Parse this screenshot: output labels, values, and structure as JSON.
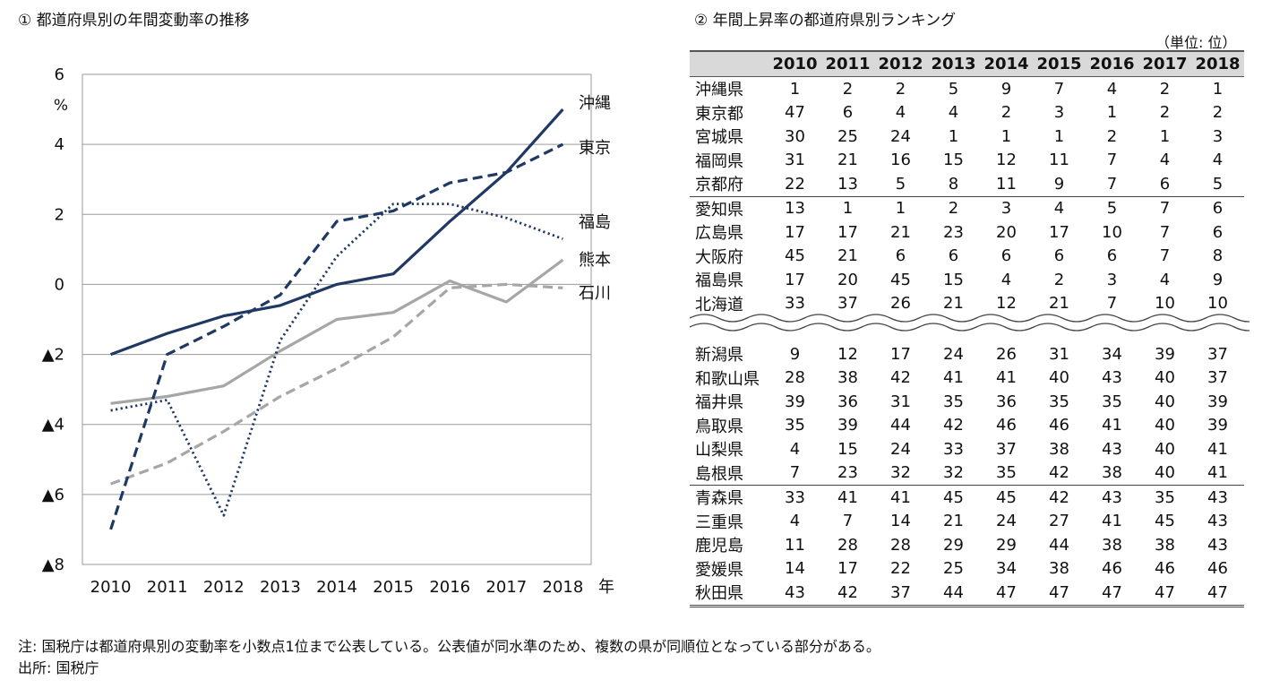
{
  "left_title": "① 都道府県別の年間変動率の推移",
  "right_title": "② 年間上昇率の都道府県別ランキング",
  "chart_data": {
    "type": "line",
    "title": "① 都道府県別の年間変動率の推移",
    "ylabel": "%",
    "xlabel": "年",
    "x": [
      "2010",
      "2011",
      "2012",
      "2013",
      "2014",
      "2015",
      "2016",
      "2017",
      "2018"
    ],
    "ylim": [
      -8,
      6
    ],
    "yticks": [
      6,
      4,
      2,
      0,
      -2,
      -4,
      -6,
      -8
    ],
    "ytick_labels": [
      "6",
      "4",
      "2",
      "0",
      "▲2",
      "▲4",
      "▲6",
      "▲8"
    ],
    "grid": true,
    "series": [
      {
        "name": "沖縄",
        "color": "#1f3864",
        "dash": "solid",
        "values": [
          -2.0,
          -1.4,
          -0.9,
          -0.6,
          0.0,
          0.3,
          1.8,
          3.2,
          5.0
        ]
      },
      {
        "name": "東京",
        "color": "#1f3864",
        "dash": "dashed",
        "values": [
          -7.0,
          -2.0,
          -1.2,
          -0.3,
          1.8,
          2.1,
          2.9,
          3.2,
          4.0
        ]
      },
      {
        "name": "福島",
        "color": "#1f3864",
        "dash": "dotted",
        "values": [
          -3.6,
          -3.3,
          -6.6,
          -1.6,
          0.8,
          2.3,
          2.3,
          1.9,
          1.3
        ]
      },
      {
        "name": "熊本",
        "color": "#a6a6a6",
        "dash": "solid",
        "values": [
          -3.4,
          -3.2,
          -2.9,
          -1.9,
          -1.0,
          -0.8,
          0.1,
          -0.5,
          0.7
        ]
      },
      {
        "name": "石川",
        "color": "#a6a6a6",
        "dash": "dashed",
        "values": [
          -5.7,
          -5.1,
          -4.2,
          -3.2,
          -2.4,
          -1.5,
          -0.1,
          0.0,
          -0.1
        ]
      }
    ]
  },
  "ranking": {
    "unit": "（単位: 位）",
    "years": [
      "2010",
      "2011",
      "2012",
      "2013",
      "2014",
      "2015",
      "2016",
      "2017",
      "2018"
    ],
    "top": [
      {
        "pref": "沖縄県",
        "ranks": [
          "1",
          "2",
          "2",
          "5",
          "9",
          "7",
          "4",
          "2",
          "1"
        ]
      },
      {
        "pref": "東京都",
        "ranks": [
          "47",
          "6",
          "4",
          "4",
          "2",
          "3",
          "1",
          "2",
          "2"
        ]
      },
      {
        "pref": "宮城県",
        "ranks": [
          "30",
          "25",
          "24",
          "1",
          "1",
          "1",
          "2",
          "1",
          "3"
        ]
      },
      {
        "pref": "福岡県",
        "ranks": [
          "31",
          "21",
          "16",
          "15",
          "12",
          "11",
          "7",
          "4",
          "4"
        ]
      },
      {
        "pref": "京都府",
        "ranks": [
          "22",
          "13",
          "5",
          "8",
          "11",
          "9",
          "7",
          "6",
          "5"
        ]
      },
      {
        "pref": "愛知県",
        "ranks": [
          "13",
          "1",
          "1",
          "2",
          "3",
          "4",
          "5",
          "7",
          "6"
        ]
      },
      {
        "pref": "広島県",
        "ranks": [
          "17",
          "17",
          "21",
          "23",
          "20",
          "17",
          "10",
          "7",
          "6"
        ]
      },
      {
        "pref": "大阪府",
        "ranks": [
          "45",
          "21",
          "6",
          "6",
          "6",
          "6",
          "6",
          "7",
          "8"
        ]
      },
      {
        "pref": "福島県",
        "ranks": [
          "17",
          "20",
          "45",
          "15",
          "4",
          "2",
          "3",
          "4",
          "9"
        ]
      },
      {
        "pref": "北海道",
        "ranks": [
          "33",
          "37",
          "26",
          "21",
          "12",
          "21",
          "7",
          "10",
          "10"
        ]
      }
    ],
    "bottom": [
      {
        "pref": "新潟県",
        "ranks": [
          "9",
          "12",
          "17",
          "24",
          "26",
          "31",
          "34",
          "39",
          "37"
        ]
      },
      {
        "pref": "和歌山県",
        "ranks": [
          "28",
          "38",
          "42",
          "41",
          "41",
          "40",
          "43",
          "40",
          "37"
        ]
      },
      {
        "pref": "福井県",
        "ranks": [
          "39",
          "36",
          "31",
          "35",
          "36",
          "35",
          "35",
          "40",
          "39"
        ]
      },
      {
        "pref": "鳥取県",
        "ranks": [
          "35",
          "39",
          "44",
          "42",
          "46",
          "46",
          "41",
          "40",
          "39"
        ]
      },
      {
        "pref": "山梨県",
        "ranks": [
          "4",
          "15",
          "24",
          "33",
          "37",
          "38",
          "43",
          "40",
          "41"
        ]
      },
      {
        "pref": "島根県",
        "ranks": [
          "7",
          "23",
          "32",
          "32",
          "35",
          "42",
          "38",
          "40",
          "41"
        ]
      },
      {
        "pref": "青森県",
        "ranks": [
          "33",
          "41",
          "41",
          "45",
          "45",
          "42",
          "43",
          "35",
          "43"
        ]
      },
      {
        "pref": "三重県",
        "ranks": [
          "4",
          "7",
          "14",
          "21",
          "24",
          "27",
          "41",
          "45",
          "43"
        ]
      },
      {
        "pref": "鹿児島",
        "ranks": [
          "11",
          "28",
          "28",
          "29",
          "29",
          "44",
          "38",
          "38",
          "43"
        ]
      },
      {
        "pref": "愛媛県",
        "ranks": [
          "14",
          "17",
          "22",
          "25",
          "34",
          "38",
          "46",
          "46",
          "46"
        ]
      },
      {
        "pref": "秋田県",
        "ranks": [
          "43",
          "42",
          "37",
          "44",
          "47",
          "47",
          "47",
          "47",
          "47"
        ]
      }
    ]
  },
  "footnote": "注: 国税庁は都道府県別の変動率を小数点1位まで公表している。公表値が同水準のため、複数の県が同順位となっている部分がある。",
  "source": "出所: 国税庁"
}
